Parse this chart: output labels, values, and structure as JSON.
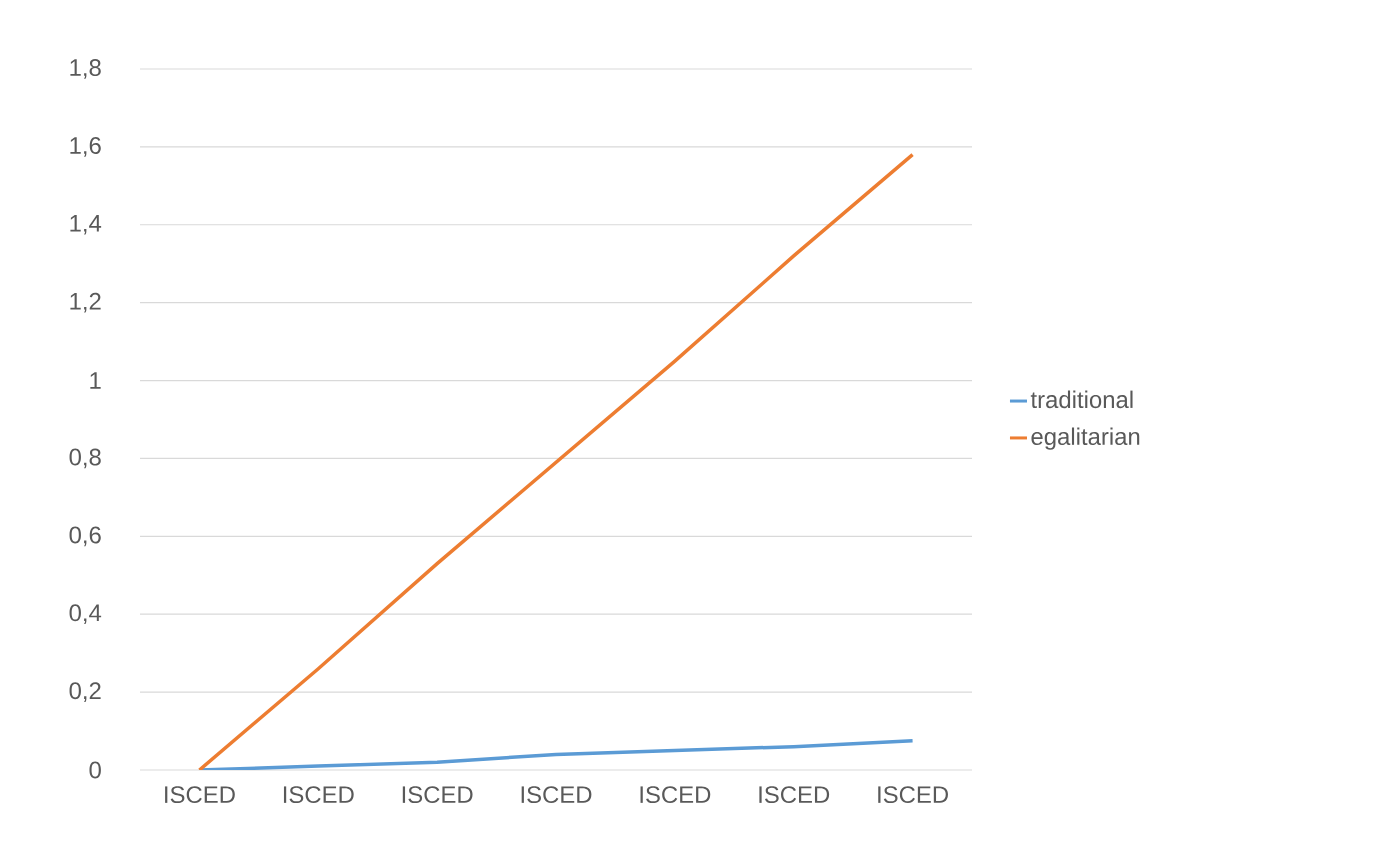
{
  "chart_data": {
    "type": "line",
    "categories": [
      "ISCED",
      "ISCED",
      "ISCED",
      "ISCED",
      "ISCED",
      "ISCED",
      "ISCED"
    ],
    "series": [
      {
        "name": "traditional",
        "color": "#5b9bd5",
        "values": [
          0,
          0.01,
          0.02,
          0.04,
          0.05,
          0.06,
          0.075
        ]
      },
      {
        "name": "egalitarian",
        "color": "#ed7d31",
        "values": [
          0,
          0.26,
          0.53,
          0.79,
          1.05,
          1.32,
          1.58
        ]
      }
    ],
    "ylim": [
      0,
      1.8
    ],
    "yticks": [
      0,
      {
        "value": 0.2,
        "label": "0,2"
      },
      {
        "value": 0.4,
        "label": "0,4"
      },
      {
        "value": 0.6,
        "label": "0,6"
      },
      {
        "value": 0.8,
        "label": "0,8"
      },
      1,
      {
        "value": 1.2,
        "label": "1,2"
      },
      {
        "value": 1.4,
        "label": "1,4"
      },
      {
        "value": 1.6,
        "label": "1,6"
      },
      {
        "value": 1.8,
        "label": "1,8"
      }
    ],
    "grid": "y",
    "legend": "right",
    "marker": "none",
    "line_style": "solid"
  }
}
